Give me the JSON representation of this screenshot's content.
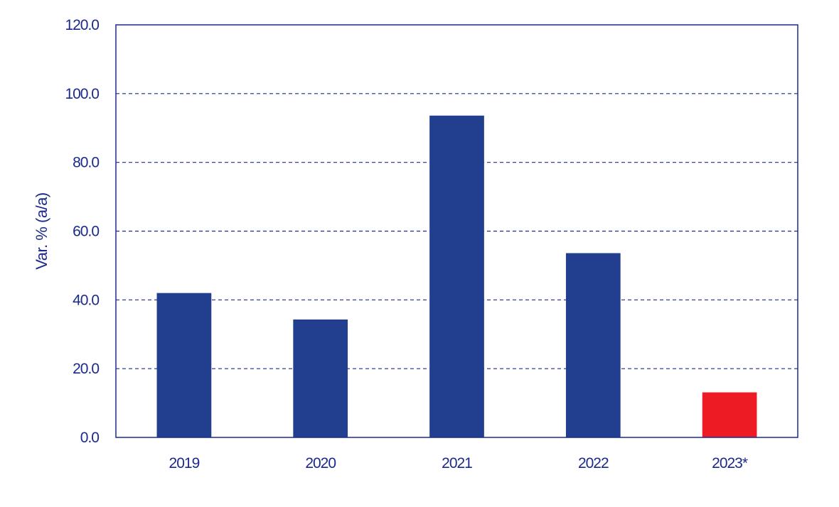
{
  "chart_data": {
    "type": "bar",
    "title": "",
    "xlabel": "",
    "ylabel": "Var. % (a/a)",
    "categories": [
      "2019",
      "2020",
      "2021",
      "2022",
      "2023*"
    ],
    "values": [
      42.0,
      34.3,
      93.6,
      53.6,
      13.1
    ],
    "ylim": [
      0,
      120
    ],
    "yticks": [
      0,
      20,
      40,
      60,
      80,
      100,
      120
    ],
    "ytick_labels": [
      "0.0",
      "20.0",
      "40.0",
      "60.0",
      "80.0",
      "100.0",
      "120.0"
    ],
    "grid": true,
    "grid_style": "dashed",
    "legend": "none"
  },
  "colors": {
    "axis_text": "#1a2a8c",
    "axis_line": "#1a2a8c",
    "grid": "#1a2a8c",
    "bar_default": "#213e8f",
    "bar_highlight": "#ed1c24"
  },
  "bar_colors": [
    "bar_default",
    "bar_default",
    "bar_default",
    "bar_default",
    "bar_highlight"
  ]
}
